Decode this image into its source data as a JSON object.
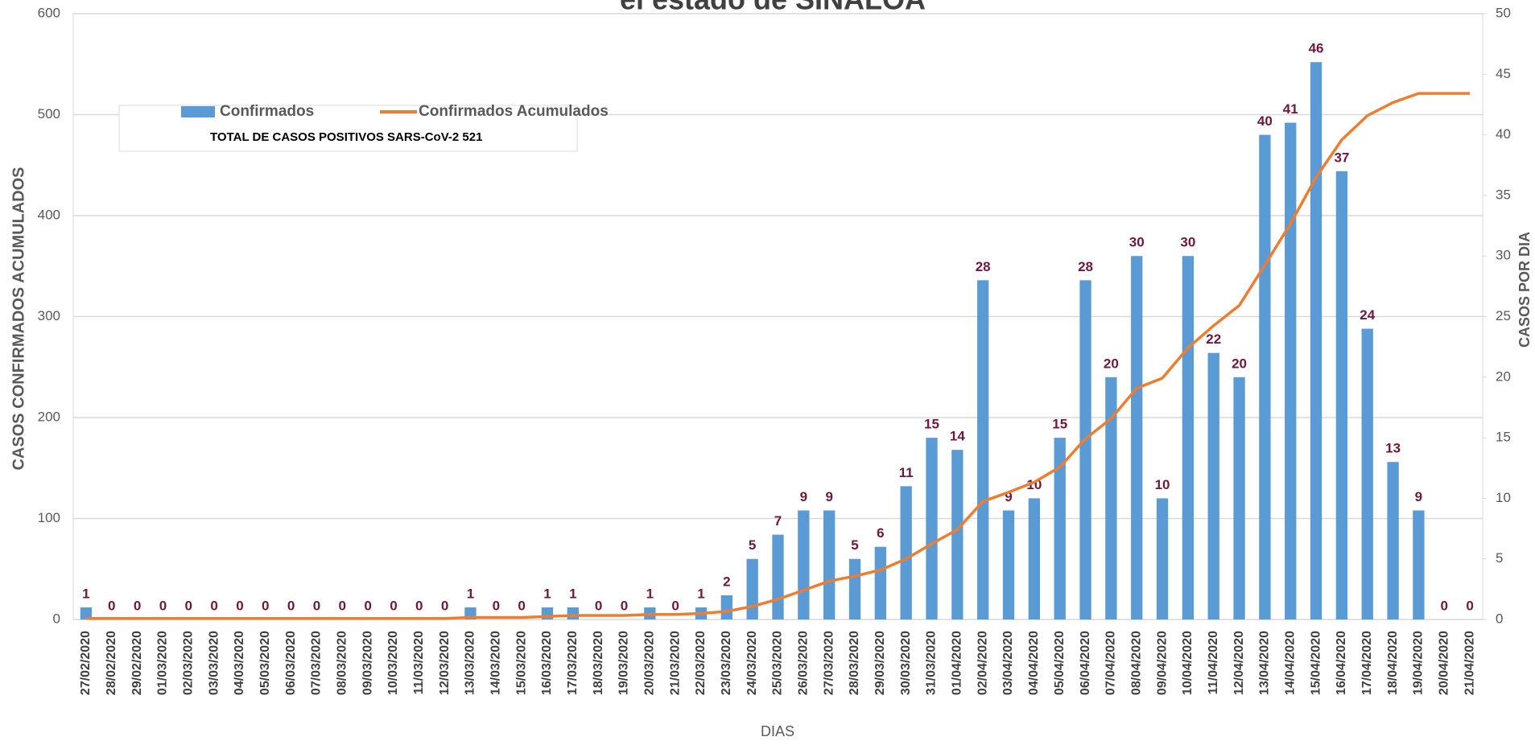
{
  "chart_data": {
    "type": "bar_line",
    "title": "el estado de SINALOA",
    "y_label": "CASOS CONFIRMADOS  ACUMULADOS",
    "y2_label": "CASOS POR DIA",
    "x_label": "DIAS",
    "annotation": "TOTAL DE CASOS   POSITIVOS SARS-CoV-2    521",
    "categories": [
      "27/02/2020",
      "28/02/2020",
      "29/02/2020",
      "01/03/2020",
      "02/03/2020",
      "03/03/2020",
      "04/03/2020",
      "05/03/2020",
      "06/03/2020",
      "07/03/2020",
      "08/03/2020",
      "09/03/2020",
      "10/03/2020",
      "11/03/2020",
      "12/03/2020",
      "13/03/2020",
      "14/03/2020",
      "15/03/2020",
      "16/03/2020",
      "17/03/2020",
      "18/03/2020",
      "19/03/2020",
      "20/03/2020",
      "21/03/2020",
      "22/03/2020",
      "23/03/2020",
      "24/03/2020",
      "25/03/2020",
      "26/03/2020",
      "27/03/2020",
      "28/03/2020",
      "29/03/2020",
      "30/03/2020",
      "31/03/2020",
      "01/04/2020",
      "02/04/2020",
      "03/04/2020",
      "04/04/2020",
      "05/04/2020",
      "06/04/2020",
      "07/04/2020",
      "08/04/2020",
      "09/04/2020",
      "10/04/2020",
      "11/04/2020",
      "12/04/2020",
      "13/04/2020",
      "14/04/2020",
      "15/04/2020",
      "16/04/2020",
      "17/04/2020",
      "18/04/2020",
      "19/04/2020",
      "20/04/2020",
      "21/04/2020"
    ],
    "series": [
      {
        "name": "Confirmados",
        "color": "#5b9bd5",
        "type": "bar",
        "axis": "y2",
        "values": [
          1,
          0,
          0,
          0,
          0,
          0,
          0,
          0,
          0,
          0,
          0,
          0,
          0,
          0,
          0,
          1,
          0,
          0,
          1,
          1,
          0,
          0,
          1,
          0,
          1,
          2,
          5,
          7,
          9,
          9,
          5,
          6,
          11,
          15,
          14,
          28,
          9,
          10,
          15,
          28,
          20,
          30,
          10,
          30,
          22,
          20,
          40,
          41,
          46,
          37,
          24,
          13,
          9,
          0,
          0
        ]
      },
      {
        "name": "Confirmados Acumulados",
        "color": "#ed7d31",
        "type": "line",
        "axis": "y",
        "values": [
          1,
          1,
          1,
          1,
          1,
          1,
          1,
          1,
          1,
          1,
          1,
          1,
          1,
          1,
          1,
          2,
          2,
          2,
          3,
          4,
          4,
          4,
          5,
          5,
          6,
          8,
          13,
          20,
          29,
          38,
          43,
          49,
          60,
          75,
          89,
          117,
          126,
          136,
          151,
          179,
          199,
          229,
          239,
          269,
          291,
          311,
          351,
          392,
          438,
          475,
          499,
          512,
          521,
          521,
          521
        ]
      }
    ],
    "ylim": [
      0,
      600
    ],
    "yticks": [
      0,
      100,
      200,
      300,
      400,
      500,
      600
    ],
    "y2lim": [
      0,
      50
    ],
    "y2ticks": [
      0,
      5,
      10,
      15,
      20,
      25,
      30,
      35,
      40,
      45,
      50
    ],
    "grid": true,
    "legend": "top-left"
  }
}
